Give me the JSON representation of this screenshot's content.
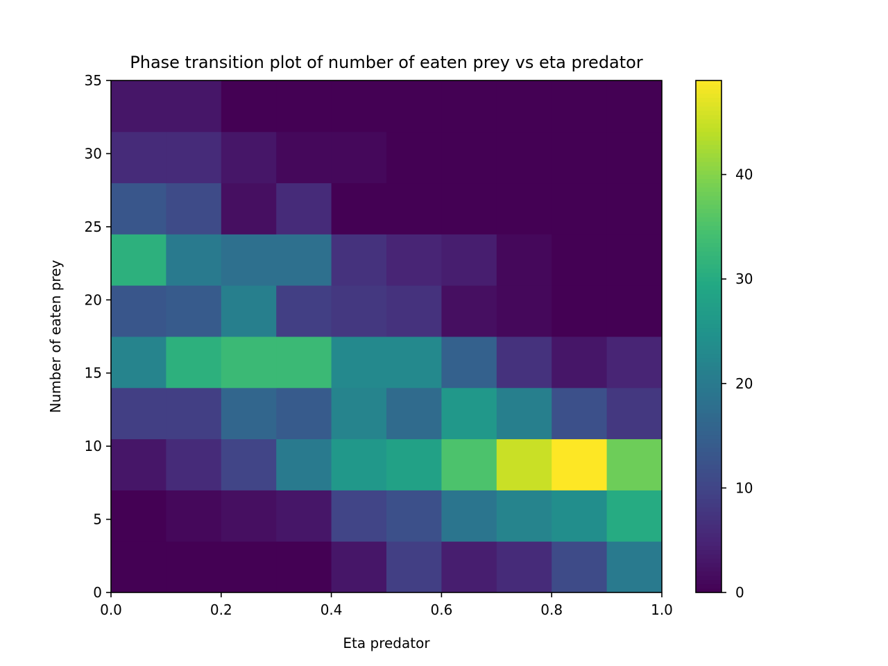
{
  "chart_data": {
    "type": "heatmap",
    "title": "Phase transition plot of number of eaten prey vs eta predator",
    "xlabel": "Eta predator",
    "ylabel": "Number of eaten prey",
    "xlim": [
      0.0,
      1.0
    ],
    "ylim": [
      0,
      35
    ],
    "x_edges": [
      0.0,
      0.1,
      0.2,
      0.3,
      0.4,
      0.5,
      0.6,
      0.7,
      0.8,
      0.9,
      1.0
    ],
    "y_edges": [
      0,
      3.5,
      7,
      10.5,
      14,
      17.5,
      21,
      24.5,
      28,
      31.5,
      35
    ],
    "x_ticks": [
      "0.0",
      "0.2",
      "0.4",
      "0.6",
      "0.8",
      "1.0"
    ],
    "y_ticks": [
      "0",
      "5",
      "10",
      "15",
      "20",
      "25",
      "30",
      "35"
    ],
    "values": [
      [
        0,
        0,
        0,
        0,
        3,
        9,
        4,
        6,
        11,
        20
      ],
      [
        0,
        1,
        2,
        3,
        10,
        12,
        19,
        22,
        24,
        30
      ],
      [
        3,
        6,
        10,
        20,
        26,
        28,
        35,
        45,
        49,
        38
      ],
      [
        9,
        9,
        16,
        14,
        22,
        17,
        26,
        21,
        12,
        8
      ],
      [
        22,
        31,
        33,
        33,
        23,
        23,
        15,
        7,
        3,
        5
      ],
      [
        13,
        14,
        21,
        9,
        8,
        7,
        2,
        1,
        0,
        0
      ],
      [
        31,
        20,
        18,
        18,
        7,
        5,
        4,
        1,
        0,
        0
      ],
      [
        13,
        11,
        2,
        6,
        0,
        0,
        0,
        0,
        0,
        0
      ],
      [
        6,
        6,
        3,
        1,
        1,
        0,
        0,
        0,
        0,
        0
      ],
      [
        3,
        3,
        0,
        0,
        0,
        0,
        0,
        0,
        0,
        0
      ]
    ],
    "colormap": "viridis",
    "colorbar": {
      "range": [
        0,
        49
      ],
      "ticks": [
        "0",
        "10",
        "20",
        "30",
        "40"
      ]
    },
    "grid": false
  }
}
